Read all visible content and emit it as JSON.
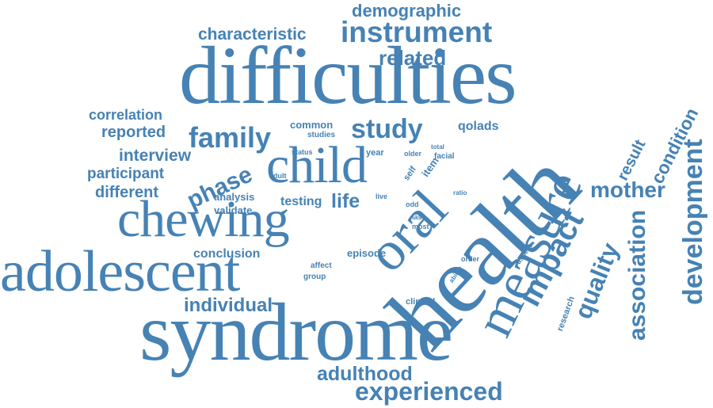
{
  "colors": {
    "word": "#4682b4",
    "background": "#ffffff"
  },
  "words": [
    {
      "id": "difficulties",
      "text": "difficulties"
    },
    {
      "id": "syndrome",
      "text": "syndrome"
    },
    {
      "id": "health",
      "text": "health"
    },
    {
      "id": "adolescent",
      "text": "adolescent"
    },
    {
      "id": "chewing",
      "text": "chewing"
    },
    {
      "id": "measure",
      "text": "measure"
    },
    {
      "id": "oral",
      "text": "oral"
    },
    {
      "id": "child",
      "text": "child"
    },
    {
      "id": "instrument",
      "text": "instrument"
    },
    {
      "id": "impact",
      "text": "impact"
    },
    {
      "id": "development",
      "text": "development"
    },
    {
      "id": "experienced",
      "text": "experienced"
    },
    {
      "id": "adulthood",
      "text": "adulthood"
    },
    {
      "id": "family",
      "text": "family"
    },
    {
      "id": "study",
      "text": "study"
    },
    {
      "id": "association",
      "text": "association"
    },
    {
      "id": "quality",
      "text": "quality"
    },
    {
      "id": "mother",
      "text": "mother"
    },
    {
      "id": "phase",
      "text": "phase"
    },
    {
      "id": "related",
      "text": "related"
    },
    {
      "id": "demographic",
      "text": "demographic"
    },
    {
      "id": "characteristic",
      "text": "characteristic"
    },
    {
      "id": "individual",
      "text": "individual"
    },
    {
      "id": "conclusion",
      "text": "conclusion"
    },
    {
      "id": "condition",
      "text": "condition"
    },
    {
      "id": "result",
      "text": "result"
    },
    {
      "id": "interview",
      "text": "interview"
    },
    {
      "id": "reported",
      "text": "reported"
    },
    {
      "id": "correlation",
      "text": "correlation"
    },
    {
      "id": "participant",
      "text": "participant"
    },
    {
      "id": "different",
      "text": "different"
    },
    {
      "id": "life",
      "text": "life"
    },
    {
      "id": "testing",
      "text": "testing"
    },
    {
      "id": "analysis",
      "text": "analysis"
    },
    {
      "id": "validate",
      "text": "validate"
    },
    {
      "id": "episode",
      "text": "episode"
    },
    {
      "id": "common",
      "text": "common"
    },
    {
      "id": "qolads",
      "text": "qolads"
    },
    {
      "id": "studies",
      "text": "studies"
    },
    {
      "id": "status",
      "text": "status"
    },
    {
      "id": "year",
      "text": "year"
    },
    {
      "id": "older",
      "text": "older"
    },
    {
      "id": "total",
      "text": "total"
    },
    {
      "id": "facial",
      "text": "facial"
    },
    {
      "id": "item",
      "text": "item"
    },
    {
      "id": "self",
      "text": "self"
    },
    {
      "id": "adult",
      "text": "adult"
    },
    {
      "id": "live",
      "text": "live"
    },
    {
      "id": "ratio",
      "text": "ratio"
    },
    {
      "id": "odd",
      "text": "odd"
    },
    {
      "id": "last",
      "text": "last"
    },
    {
      "id": "most",
      "text": "most"
    },
    {
      "id": "affect",
      "text": "affect"
    },
    {
      "id": "group",
      "text": "group"
    },
    {
      "id": "ability",
      "text": "ability"
    },
    {
      "id": "order",
      "text": "order"
    },
    {
      "id": "aspect",
      "text": "aspect"
    },
    {
      "id": "clinical",
      "text": "clinical"
    },
    {
      "id": "research",
      "text": "research"
    }
  ]
}
